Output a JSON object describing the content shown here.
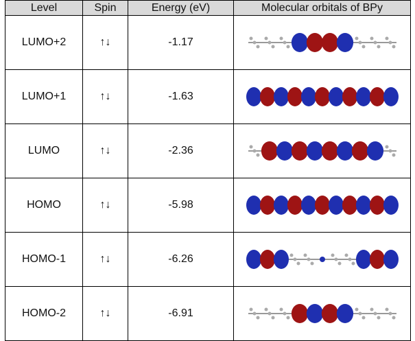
{
  "table": {
    "header": [
      "Level",
      "Spin",
      "Energy (eV)",
      "Molecular orbitals of BPy"
    ],
    "rows": [
      [
        "LUMO+2",
        "↑↓",
        "-1.17"
      ],
      [
        "LUMO+1",
        "↑↓",
        "-1.63"
      ],
      [
        "LUMO",
        "↑↓",
        "-2.36"
      ],
      [
        "HOMO",
        "↑↓",
        "-5.98"
      ],
      [
        "HOMO-1",
        "↑↓",
        "-6.26"
      ],
      [
        "HOMO-2",
        "↑↓",
        "-6.91"
      ]
    ]
  }
}
